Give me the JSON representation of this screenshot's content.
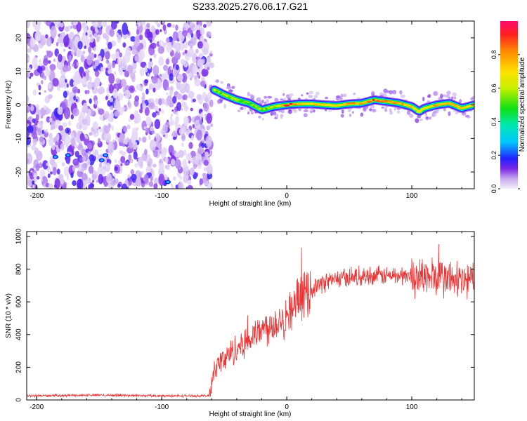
{
  "title": "S233.2025.276.06.17.G21",
  "chart_data": [
    {
      "type": "heatmap",
      "name": "spectrogram",
      "xlabel": "Height of straight line (km)",
      "ylabel": "Frequency (Hz)",
      "xlim": [
        -208,
        150
      ],
      "ylim": [
        -25,
        25
      ],
      "xticks": [
        -200,
        -100,
        0,
        100
      ],
      "yticks": [
        -20,
        -10,
        0,
        10,
        20
      ],
      "noise_region_km": [
        -208,
        -60
      ],
      "signal_track": {
        "x": [
          -58,
          -50,
          -40,
          -30,
          -20,
          -10,
          0,
          10,
          20,
          30,
          40,
          50,
          60,
          70,
          80,
          90,
          100,
          106,
          110,
          120,
          130,
          140,
          150
        ],
        "frequency_hz": [
          4.5,
          3,
          1.5,
          0.5,
          -1.5,
          -0.5,
          0,
          0.3,
          0.3,
          0,
          -0.2,
          0.3,
          0.5,
          1.5,
          1,
          0.5,
          -0.5,
          -2,
          -1,
          0,
          0.5,
          -1,
          0
        ],
        "amplitude": [
          0.55,
          0.5,
          0.55,
          0.5,
          0.45,
          0.55,
          0.95,
          0.8,
          0.7,
          0.75,
          0.7,
          0.75,
          0.8,
          0.85,
          0.8,
          0.75,
          0.7,
          0.55,
          0.65,
          0.75,
          0.8,
          0.7,
          0.75
        ]
      },
      "colorbar": {
        "label": "Normalized spectral amplitude",
        "range": [
          0,
          1
        ],
        "ticks": [
          "0.0",
          "0.2",
          "0.4",
          "0.6",
          "0.8"
        ]
      }
    },
    {
      "type": "line",
      "name": "snr",
      "xlabel": "Height of straight line (km)",
      "ylabel": "SNR (10 * v/v)",
      "xlim": [
        -208,
        150
      ],
      "ylim": [
        0,
        1030
      ],
      "xticks": [
        -200,
        -100,
        0,
        100
      ],
      "yticks": [
        0,
        200,
        400,
        600,
        800,
        1000
      ],
      "color": "#ee3333",
      "series": [
        {
          "name": "SNR",
          "x": [
            -208,
            -150,
            -100,
            -62,
            -58,
            -50,
            -40,
            -30,
            -20,
            -10,
            0,
            10,
            20,
            30,
            40,
            50,
            60,
            70,
            80,
            90,
            100,
            110,
            120,
            130,
            140,
            150
          ],
          "y": [
            25,
            30,
            25,
            25,
            200,
            250,
            320,
            370,
            430,
            470,
            520,
            620,
            680,
            720,
            740,
            750,
            760,
            760,
            760,
            760,
            760,
            750,
            750,
            740,
            720,
            740
          ]
        }
      ]
    }
  ]
}
